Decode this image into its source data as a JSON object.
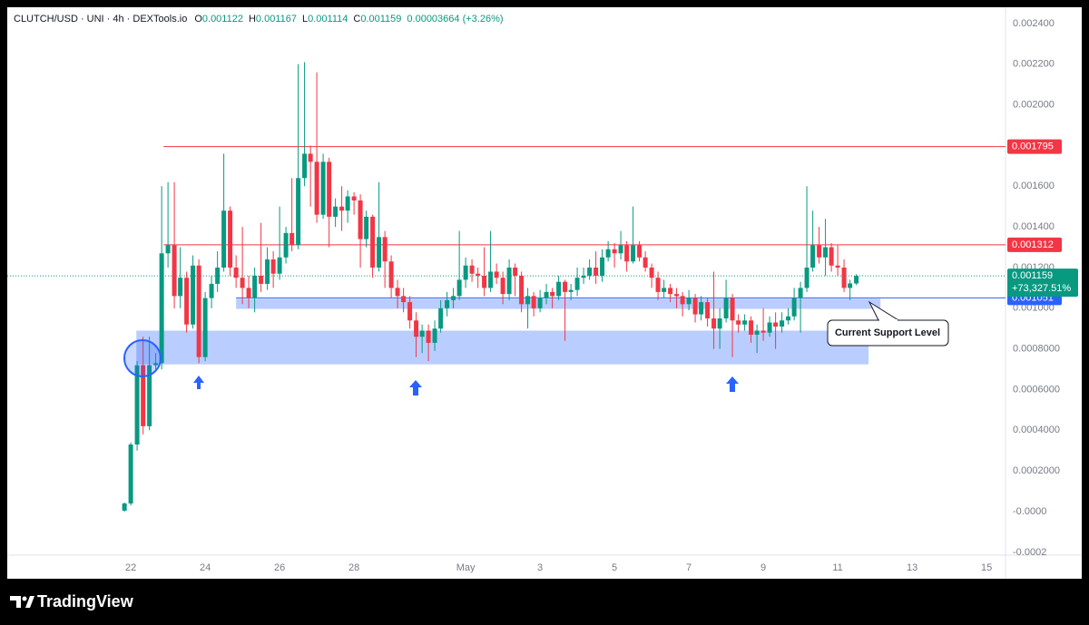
{
  "chart_data": {
    "type": "candlestick",
    "header": {
      "symbol": "CLUTCH/USD · UNI · 4h · DEXTools.io",
      "ohlc": [
        {
          "label": "O",
          "value": 0.001122
        },
        {
          "label": "H",
          "value": 0.001167
        },
        {
          "label": "L",
          "value": 0.001114
        },
        {
          "label": "C",
          "value": 0.001159
        }
      ],
      "change": "0.00003664 (+3.26%)"
    },
    "up_color": "#089981",
    "down_color": "#f23645",
    "grid": false,
    "x": [
      21.83,
      22,
      22.17,
      22.33,
      22.5,
      22.67,
      22.83,
      23,
      23.17,
      23.33,
      23.5,
      23.67,
      23.83,
      24,
      24.17,
      24.33,
      24.5,
      24.67,
      24.83,
      25,
      25.17,
      25.33,
      25.5,
      25.67,
      25.83,
      26,
      26.17,
      26.33,
      26.5,
      26.67,
      26.83,
      27,
      27.17,
      27.33,
      27.5,
      27.67,
      27.83,
      28,
      28.17,
      28.33,
      28.5,
      28.67,
      28.83,
      29,
      29.17,
      29.33,
      29.5,
      29.67,
      29.83,
      30,
      30.17,
      30.33,
      30.5,
      30.67,
      30.83,
      31,
      31.17,
      31.33,
      31.5,
      31.67,
      31.83,
      32,
      32.17,
      32.33,
      32.5,
      32.67,
      32.83,
      33,
      33.17,
      33.33,
      33.5,
      33.67,
      33.83,
      34,
      34.17,
      34.33,
      34.5,
      34.67,
      34.83,
      35,
      35.17,
      35.33,
      35.5,
      35.67,
      35.83,
      36,
      36.17,
      36.33,
      36.5,
      36.67,
      36.83,
      37,
      37.17,
      37.33,
      37.5,
      37.67,
      37.83,
      38,
      38.17,
      38.33,
      38.5,
      38.67,
      38.83,
      39,
      39.17,
      39.33,
      39.5,
      39.67,
      39.83,
      40,
      40.17,
      40.33,
      40.5,
      40.67,
      40.83,
      41,
      41.17,
      41.33,
      41.5
    ],
    "open": [
      5e-06,
      4e-05,
      0.00033,
      0.00072,
      0.00042,
      0.00072,
      0.00073,
      0.00127,
      0.00131,
      0.00106,
      0.00115,
      0.00092,
      0.00121,
      0.00076,
      0.00105,
      0.00112,
      0.0012,
      0.00148,
      0.0012,
      0.00115,
      0.0011,
      0.00105,
      0.00116,
      0.00112,
      0.00124,
      0.00117,
      0.00125,
      0.00137,
      0.00131,
      0.00164,
      0.00176,
      0.00172,
      0.00146,
      0.00172,
      0.00145,
      0.0015,
      0.00148,
      0.00155,
      0.00153,
      0.00134,
      0.00145,
      0.0012,
      0.00135,
      0.00123,
      0.0011,
      0.00106,
      0.00103,
      0.00094,
      0.00086,
      0.00089,
      0.00083,
      0.0009,
      0.001,
      0.00104,
      0.00106,
      0.00114,
      0.00121,
      0.00117,
      0.00116,
      0.0011,
      0.00118,
      0.00115,
      0.00107,
      0.0012,
      0.00116,
      0.00102,
      0.00106,
      0.001,
      0.00105,
      0.00108,
      0.00106,
      0.00113,
      0.00108,
      0.00109,
      0.00115,
      0.00116,
      0.0012,
      0.00116,
      0.00125,
      0.00129,
      0.00127,
      0.00131,
      0.00123,
      0.00131,
      0.00125,
      0.0012,
      0.00115,
      0.00108,
      0.0011,
      0.00107,
      0.00106,
      0.00102,
      0.00105,
      0.00097,
      0.00103,
      0.00095,
      0.0009,
      0.00095,
      0.00105,
      0.00094,
      0.00092,
      0.00094,
      0.00087,
      0.00089,
      0.00088,
      0.00093,
      0.00091,
      0.00094,
      0.00096,
      0.00105,
      0.0011,
      0.0012,
      0.00131,
      0.00125,
      0.0013,
      0.00121,
      0.0012,
      0.0011,
      0.001122
    ],
    "high": [
      4.5e-05,
      0.00034,
      0.00074,
      0.00086,
      0.00086,
      0.00078,
      0.0016,
      0.00162,
      0.00162,
      0.0013,
      0.00118,
      0.00126,
      0.00124,
      0.00108,
      0.00116,
      0.00128,
      0.00176,
      0.0015,
      0.00126,
      0.0014,
      0.00116,
      0.0012,
      0.00142,
      0.0013,
      0.00128,
      0.0015,
      0.0014,
      0.00164,
      0.0022,
      0.00221,
      0.0018,
      0.00216,
      0.00176,
      0.00174,
      0.00154,
      0.0016,
      0.00158,
      0.00157,
      0.00156,
      0.00148,
      0.00146,
      0.00162,
      0.00138,
      0.00126,
      0.00114,
      0.0011,
      0.00106,
      0.00098,
      0.00092,
      0.00092,
      0.00094,
      0.00104,
      0.00108,
      0.0011,
      0.00138,
      0.00125,
      0.00124,
      0.0012,
      0.0013,
      0.00138,
      0.00122,
      0.00118,
      0.00124,
      0.00122,
      0.00118,
      0.0011,
      0.00108,
      0.00109,
      0.00112,
      0.0011,
      0.00116,
      0.00114,
      0.00112,
      0.0012,
      0.0012,
      0.00124,
      0.00128,
      0.00129,
      0.00133,
      0.00132,
      0.00138,
      0.00133,
      0.0015,
      0.00133,
      0.00128,
      0.00122,
      0.00118,
      0.00114,
      0.00112,
      0.0011,
      0.00108,
      0.00109,
      0.00107,
      0.00106,
      0.00105,
      0.00118,
      0.001,
      0.00114,
      0.00107,
      0.00097,
      0.00097,
      0.00096,
      0.00092,
      0.001,
      0.00096,
      0.00098,
      0.00098,
      0.001,
      0.0011,
      0.00113,
      0.0016,
      0.00148,
      0.0014,
      0.00144,
      0.00132,
      0.00131,
      0.00124,
      0.00114,
      0.001167
    ],
    "low": [
      0,
      3e-05,
      0.0003,
      0.00038,
      0.0004,
      0.0007,
      0.0007,
      0.0012,
      0.001,
      0.001,
      0.00088,
      0.0009,
      0.00073,
      0.00074,
      0.001,
      0.00108,
      0.00118,
      0.00116,
      0.0011,
      0.00102,
      0.001,
      0.00098,
      0.00108,
      0.00109,
      0.0011,
      0.00114,
      0.00122,
      0.00128,
      0.00129,
      0.0016,
      0.0015,
      0.00142,
      0.00144,
      0.0013,
      0.0014,
      0.00138,
      0.00142,
      0.00146,
      0.0012,
      0.0013,
      0.00115,
      0.00118,
      0.0011,
      0.00105,
      0.001,
      0.00098,
      0.0009,
      0.00076,
      0.00078,
      0.00074,
      0.00079,
      0.00088,
      0.00096,
      0.001,
      0.00104,
      0.0011,
      0.00113,
      0.0011,
      0.00106,
      0.00108,
      0.00112,
      0.00102,
      0.00104,
      0.00106,
      0.00098,
      0.0009,
      0.00096,
      0.00098,
      0.00102,
      0.001,
      0.00104,
      0.00084,
      0.00104,
      0.00106,
      0.00112,
      0.00114,
      0.00112,
      0.00113,
      0.00123,
      0.0012,
      0.00124,
      0.00118,
      0.00122,
      0.00123,
      0.00118,
      0.0011,
      0.00104,
      0.00105,
      0.00103,
      0.001,
      0.00096,
      0.00099,
      0.00093,
      0.00094,
      0.00091,
      0.0008,
      0.0008,
      0.00093,
      0.00076,
      0.00088,
      0.00089,
      0.00083,
      0.00078,
      0.00084,
      0.00086,
      0.0008,
      0.00088,
      0.00092,
      0.00094,
      0.00088,
      0.00108,
      0.00118,
      0.00122,
      0.00116,
      0.00118,
      0.00116,
      0.00108,
      0.00104,
      0.001114
    ],
    "close": [
      4e-05,
      0.00033,
      0.00072,
      0.00042,
      0.00072,
      0.00073,
      0.00127,
      0.00131,
      0.00106,
      0.00115,
      0.00092,
      0.00121,
      0.00076,
      0.00105,
      0.00112,
      0.0012,
      0.00148,
      0.0012,
      0.00115,
      0.0011,
      0.00105,
      0.00116,
      0.00112,
      0.00124,
      0.00117,
      0.00125,
      0.00137,
      0.00131,
      0.00164,
      0.00176,
      0.00172,
      0.00146,
      0.00172,
      0.00145,
      0.0015,
      0.00148,
      0.00155,
      0.00153,
      0.00134,
      0.00145,
      0.0012,
      0.00135,
      0.00123,
      0.0011,
      0.00106,
      0.00103,
      0.00094,
      0.00086,
      0.00089,
      0.00083,
      0.0009,
      0.001,
      0.00104,
      0.00106,
      0.00114,
      0.00121,
      0.00117,
      0.00116,
      0.0011,
      0.00118,
      0.00115,
      0.00107,
      0.0012,
      0.00116,
      0.00102,
      0.00106,
      0.001,
      0.00105,
      0.00108,
      0.00106,
      0.00113,
      0.00108,
      0.00109,
      0.00115,
      0.00116,
      0.0012,
      0.00116,
      0.00125,
      0.00129,
      0.00127,
      0.00131,
      0.00123,
      0.00131,
      0.00125,
      0.0012,
      0.00115,
      0.00108,
      0.0011,
      0.00107,
      0.00106,
      0.00102,
      0.00105,
      0.00097,
      0.00103,
      0.00095,
      0.0009,
      0.00095,
      0.00105,
      0.00094,
      0.00092,
      0.00094,
      0.00087,
      0.00089,
      0.00088,
      0.00093,
      0.00091,
      0.00094,
      0.00096,
      0.00105,
      0.0011,
      0.0012,
      0.00131,
      0.00125,
      0.0013,
      0.00121,
      0.0012,
      0.0011,
      0.001122,
      0.001159
    ],
    "xlim": [
      18.68,
      45.51
    ],
    "ylim": [
      -0.000214,
      0.00248
    ],
    "xticks": [
      22,
      24,
      26,
      28,
      {
        "value": 31,
        "label": "May"
      },
      {
        "value": 33,
        "label": "3"
      },
      {
        "value": 35,
        "label": "5"
      },
      {
        "value": 37,
        "label": "7"
      },
      {
        "value": 39,
        "label": "9"
      },
      {
        "value": 41,
        "label": "11"
      },
      {
        "value": 43,
        "label": "13"
      },
      {
        "value": 45,
        "label": "15"
      }
    ],
    "yticks": [
      {
        "value": 0.0024,
        "label": "0.002400"
      },
      {
        "value": 0.0022,
        "label": "0.002200"
      },
      {
        "value": 0.002,
        "label": "0.002000"
      },
      {
        "value": 0.0016,
        "label": "0.001600"
      },
      {
        "value": 0.0014,
        "label": "0.001400"
      },
      {
        "value": 0.0012,
        "label": "0.001200"
      },
      {
        "value": 0.001,
        "label": "0.001000"
      },
      {
        "value": 0.0008,
        "label": "0.0008000"
      },
      {
        "value": 0.0006,
        "label": "0.0006000"
      },
      {
        "value": 0.0004,
        "label": "0.0004000"
      },
      {
        "value": 0.0002,
        "label": "0.0002000"
      },
      {
        "value": 0,
        "label": "-0.0000"
      },
      {
        "value": -0.0002,
        "label": "-0.0002"
      }
    ],
    "levels": [
      {
        "value": 0.001795,
        "color": "#f23645",
        "x0": 22.88
      },
      {
        "value": 0.001312,
        "color": "#f23645",
        "x0": 22.88
      },
      {
        "value": 0.001051,
        "color": "#2962ff",
        "x0": 24.83
      }
    ],
    "zones": [
      {
        "x0": 22.15,
        "x1": 41.83,
        "y0": 0.000724,
        "y1": 0.00089
      },
      {
        "x0": 24.83,
        "x1": 42.15,
        "y0": 0.000997,
        "y1": 0.001047
      }
    ],
    "last": {
      "value": 0.001159,
      "change": "+73,327.51%",
      "color": "#089981"
    },
    "annotation": "Current Support Level"
  },
  "footer": {
    "brand": "TradingView"
  }
}
